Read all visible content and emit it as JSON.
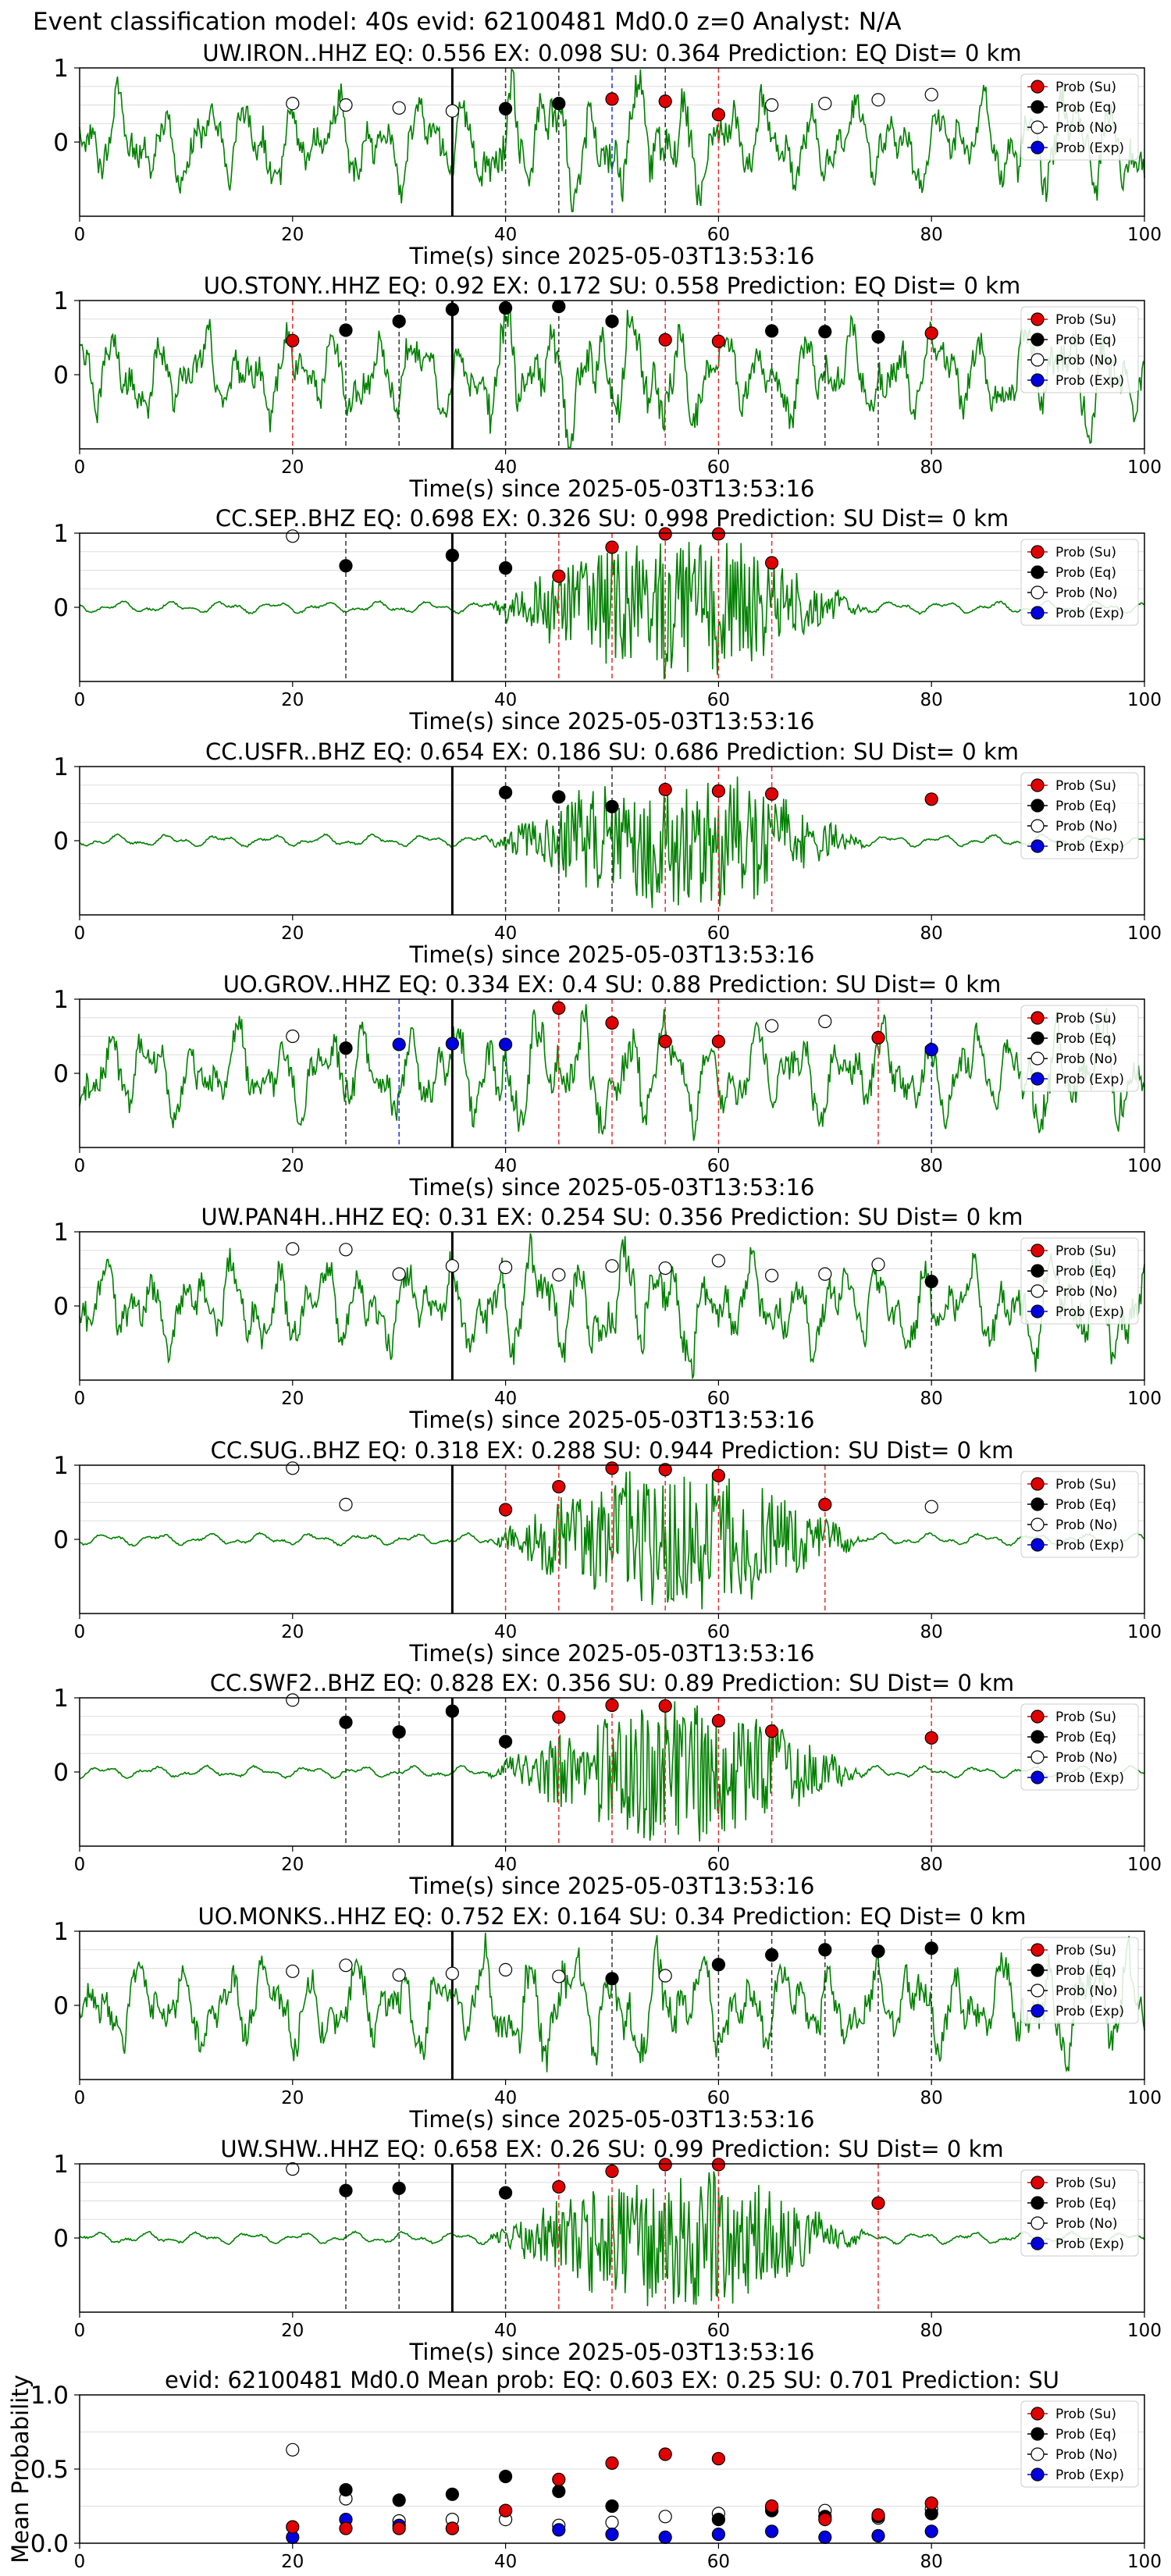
{
  "suptitle": "Event classification model: 40s evid: 62100481 Md0.0 z=0 Analyst: N/A",
  "colors": {
    "waveform": "#008000",
    "su": "#e00000",
    "eq": "#000000",
    "no": "#ffffff",
    "exp": "#0000e0",
    "pick": "#000000",
    "grid": "#dddddd"
  },
  "legend": [
    "Prob (Su)",
    "Prob (Eq)",
    "Prob (No)",
    "Prob (Exp)"
  ],
  "chart_data": [
    {
      "type": "line",
      "title": "UW.IRON..HHZ   EQ: 0.556  EX: 0.098  SU: 0.364   Prediction: EQ    Dist= 0 km",
      "xlabel": "Time(s) since 2025-05-03T13:53:16",
      "xlim": [
        0,
        100
      ],
      "ylim": [
        -1,
        1
      ],
      "xticks": [
        "0",
        "20",
        "40",
        "60",
        "80",
        "100"
      ],
      "yticks": [
        "1",
        "0"
      ],
      "pick_time": 35,
      "signal": "noise",
      "su": [
        [
          50,
          0.58
        ],
        [
          55,
          0.55
        ],
        [
          60,
          0.37
        ]
      ],
      "eq": [
        [
          40,
          0.45
        ],
        [
          45,
          0.52
        ]
      ],
      "no": [
        [
          20,
          0.52
        ],
        [
          25,
          0.5
        ],
        [
          30,
          0.46
        ],
        [
          35,
          0.42
        ],
        [
          65,
          0.5
        ],
        [
          70,
          0.52
        ],
        [
          75,
          0.57
        ],
        [
          80,
          0.64
        ]
      ],
      "exp": [],
      "vlines": [
        {
          "x": 40,
          "c": "k"
        },
        {
          "x": 45,
          "c": "k"
        },
        {
          "x": 50,
          "c": "b"
        },
        {
          "x": 55,
          "c": "k"
        },
        {
          "x": 60,
          "c": "r"
        }
      ]
    },
    {
      "type": "line",
      "title": "UO.STONY..HHZ   EQ: 0.92  EX: 0.172  SU: 0.558   Prediction: EQ    Dist= 0 km",
      "xlabel": "Time(s) since 2025-05-03T13:53:16",
      "xlim": [
        0,
        100
      ],
      "ylim": [
        -1,
        1
      ],
      "xticks": [
        "0",
        "20",
        "40",
        "60",
        "80",
        "100"
      ],
      "yticks": [
        "1",
        "0"
      ],
      "pick_time": 35,
      "signal": "noise",
      "su": [
        [
          20,
          0.46
        ],
        [
          55,
          0.47
        ],
        [
          60,
          0.45
        ],
        [
          80,
          0.56
        ]
      ],
      "eq": [
        [
          25,
          0.6
        ],
        [
          30,
          0.72
        ],
        [
          35,
          0.88
        ],
        [
          40,
          0.9
        ],
        [
          45,
          0.92
        ],
        [
          50,
          0.72
        ],
        [
          65,
          0.59
        ],
        [
          70,
          0.58
        ],
        [
          75,
          0.51
        ]
      ],
      "no": [],
      "exp": [],
      "vlines": [
        {
          "x": 20,
          "c": "r"
        },
        {
          "x": 25,
          "c": "k"
        },
        {
          "x": 30,
          "c": "k"
        },
        {
          "x": 40,
          "c": "k"
        },
        {
          "x": 45,
          "c": "k"
        },
        {
          "x": 50,
          "c": "k"
        },
        {
          "x": 55,
          "c": "r"
        },
        {
          "x": 60,
          "c": "r"
        },
        {
          "x": 65,
          "c": "k"
        },
        {
          "x": 70,
          "c": "k"
        },
        {
          "x": 75,
          "c": "k"
        },
        {
          "x": 80,
          "c": "r"
        }
      ]
    },
    {
      "type": "line",
      "title": "CC.SEP..BHZ   EQ: 0.698  EX: 0.326  SU: 0.998   Prediction: SU    Dist= 0 km",
      "xlabel": "Time(s) since 2025-05-03T13:53:16",
      "xlim": [
        0,
        100
      ],
      "ylim": [
        -1,
        1
      ],
      "xticks": [
        "0",
        "20",
        "40",
        "60",
        "80",
        "100"
      ],
      "yticks": [
        "1",
        "0"
      ],
      "pick_time": 35,
      "signal": "burst",
      "su": [
        [
          45,
          0.42
        ],
        [
          50,
          0.81
        ],
        [
          55,
          0.99
        ],
        [
          60,
          0.99
        ],
        [
          65,
          0.6
        ]
      ],
      "eq": [
        [
          25,
          0.56
        ],
        [
          35,
          0.7
        ],
        [
          40,
          0.53
        ]
      ],
      "no": [
        [
          20,
          0.96
        ]
      ],
      "exp": [],
      "vlines": [
        {
          "x": 25,
          "c": "k"
        },
        {
          "x": 40,
          "c": "k"
        },
        {
          "x": 45,
          "c": "r"
        },
        {
          "x": 50,
          "c": "r"
        },
        {
          "x": 55,
          "c": "r"
        },
        {
          "x": 60,
          "c": "r"
        },
        {
          "x": 65,
          "c": "r"
        }
      ]
    },
    {
      "type": "line",
      "title": "CC.USFR..BHZ   EQ: 0.654  EX: 0.186  SU: 0.686   Prediction: SU    Dist= 0 km",
      "xlabel": "Time(s) since 2025-05-03T13:53:16",
      "xlim": [
        0,
        100
      ],
      "ylim": [
        -1,
        1
      ],
      "xticks": [
        "0",
        "20",
        "40",
        "60",
        "80",
        "100"
      ],
      "yticks": [
        "1",
        "0"
      ],
      "pick_time": 35,
      "signal": "burst",
      "su": [
        [
          55,
          0.69
        ],
        [
          60,
          0.67
        ],
        [
          65,
          0.63
        ],
        [
          80,
          0.56
        ]
      ],
      "eq": [
        [
          40,
          0.65
        ],
        [
          45,
          0.59
        ],
        [
          50,
          0.46
        ]
      ],
      "no": [],
      "exp": [],
      "vlines": [
        {
          "x": 40,
          "c": "k"
        },
        {
          "x": 45,
          "c": "k"
        },
        {
          "x": 50,
          "c": "k"
        },
        {
          "x": 55,
          "c": "r"
        },
        {
          "x": 60,
          "c": "r"
        },
        {
          "x": 65,
          "c": "r"
        }
      ]
    },
    {
      "type": "line",
      "title": "UO.GROV..HHZ   EQ: 0.334  EX: 0.4  SU: 0.88   Prediction: SU    Dist= 0 km",
      "xlabel": "Time(s) since 2025-05-03T13:53:16",
      "xlim": [
        0,
        100
      ],
      "ylim": [
        -1,
        1
      ],
      "xticks": [
        "0",
        "20",
        "40",
        "60",
        "80",
        "100"
      ],
      "yticks": [
        "1",
        "0"
      ],
      "pick_time": 35,
      "signal": "noise",
      "su": [
        [
          45,
          0.88
        ],
        [
          50,
          0.68
        ],
        [
          55,
          0.43
        ],
        [
          60,
          0.43
        ],
        [
          75,
          0.48
        ]
      ],
      "eq": [
        [
          25,
          0.34
        ]
      ],
      "no": [
        [
          20,
          0.5
        ],
        [
          65,
          0.64
        ],
        [
          70,
          0.7
        ]
      ],
      "exp": [
        [
          30,
          0.39
        ],
        [
          35,
          0.4
        ],
        [
          40,
          0.39
        ],
        [
          80,
          0.32
        ]
      ],
      "vlines": [
        {
          "x": 25,
          "c": "k"
        },
        {
          "x": 30,
          "c": "b"
        },
        {
          "x": 40,
          "c": "b"
        },
        {
          "x": 45,
          "c": "r"
        },
        {
          "x": 50,
          "c": "r"
        },
        {
          "x": 55,
          "c": "r"
        },
        {
          "x": 60,
          "c": "r"
        },
        {
          "x": 75,
          "c": "r"
        },
        {
          "x": 80,
          "c": "b"
        }
      ]
    },
    {
      "type": "line",
      "title": "UW.PAN4H..HHZ   EQ: 0.31  EX: 0.254  SU: 0.356   Prediction: SU    Dist= 0 km",
      "xlabel": "Time(s) since 2025-05-03T13:53:16",
      "xlim": [
        0,
        100
      ],
      "ylim": [
        -1,
        1
      ],
      "xticks": [
        "0",
        "20",
        "40",
        "60",
        "80",
        "100"
      ],
      "yticks": [
        "1",
        "0"
      ],
      "pick_time": 35,
      "signal": "noise",
      "su": [],
      "eq": [
        [
          80,
          0.33
        ]
      ],
      "no": [
        [
          20,
          0.77
        ],
        [
          25,
          0.76
        ],
        [
          30,
          0.43
        ],
        [
          35,
          0.54
        ],
        [
          40,
          0.52
        ],
        [
          45,
          0.42
        ],
        [
          50,
          0.54
        ],
        [
          55,
          0.51
        ],
        [
          60,
          0.61
        ],
        [
          65,
          0.41
        ],
        [
          70,
          0.43
        ],
        [
          75,
          0.56
        ]
      ],
      "exp": [],
      "vlines": [
        {
          "x": 80,
          "c": "k"
        }
      ]
    },
    {
      "type": "line",
      "title": "CC.SUG..BHZ   EQ: 0.318  EX: 0.288  SU: 0.944   Prediction: SU    Dist= 0 km",
      "xlabel": "Time(s) since 2025-05-03T13:53:16",
      "xlim": [
        0,
        100
      ],
      "ylim": [
        -1,
        1
      ],
      "xticks": [
        "0",
        "20",
        "40",
        "60",
        "80",
        "100"
      ],
      "yticks": [
        "1",
        "0"
      ],
      "pick_time": 35,
      "signal": "burst",
      "su": [
        [
          40,
          0.4
        ],
        [
          45,
          0.71
        ],
        [
          50,
          0.96
        ],
        [
          55,
          0.94
        ],
        [
          60,
          0.86
        ],
        [
          70,
          0.47
        ]
      ],
      "eq": [],
      "no": [
        [
          20,
          0.96
        ],
        [
          25,
          0.47
        ],
        [
          80,
          0.44
        ]
      ],
      "exp": [],
      "vlines": [
        {
          "x": 40,
          "c": "r"
        },
        {
          "x": 45,
          "c": "r"
        },
        {
          "x": 50,
          "c": "r"
        },
        {
          "x": 55,
          "c": "r"
        },
        {
          "x": 60,
          "c": "r"
        },
        {
          "x": 70,
          "c": "r"
        }
      ]
    },
    {
      "type": "line",
      "title": "CC.SWF2..BHZ   EQ: 0.828  EX: 0.356  SU: 0.89   Prediction: SU    Dist= 0 km",
      "xlabel": "Time(s) since 2025-05-03T13:53:16",
      "xlim": [
        0,
        100
      ],
      "ylim": [
        -1,
        1
      ],
      "xticks": [
        "0",
        "20",
        "40",
        "60",
        "80",
        "100"
      ],
      "yticks": [
        "1",
        "0"
      ],
      "pick_time": 35,
      "signal": "burst",
      "su": [
        [
          45,
          0.74
        ],
        [
          50,
          0.9
        ],
        [
          55,
          0.89
        ],
        [
          60,
          0.69
        ],
        [
          65,
          0.55
        ],
        [
          80,
          0.46
        ]
      ],
      "eq": [
        [
          25,
          0.67
        ],
        [
          30,
          0.54
        ],
        [
          35,
          0.82
        ],
        [
          40,
          0.41
        ]
      ],
      "no": [
        [
          20,
          0.97
        ]
      ],
      "exp": [],
      "vlines": [
        {
          "x": 25,
          "c": "k"
        },
        {
          "x": 30,
          "c": "k"
        },
        {
          "x": 40,
          "c": "k"
        },
        {
          "x": 45,
          "c": "r"
        },
        {
          "x": 50,
          "c": "r"
        },
        {
          "x": 55,
          "c": "r"
        },
        {
          "x": 60,
          "c": "r"
        },
        {
          "x": 65,
          "c": "r"
        },
        {
          "x": 80,
          "c": "r"
        }
      ]
    },
    {
      "type": "line",
      "title": "UO.MONKS..HHZ   EQ: 0.752  EX: 0.164  SU: 0.34   Prediction: EQ    Dist= 0 km",
      "xlabel": "Time(s) since 2025-05-03T13:53:16",
      "xlim": [
        0,
        100
      ],
      "ylim": [
        -1,
        1
      ],
      "xticks": [
        "0",
        "20",
        "40",
        "60",
        "80",
        "100"
      ],
      "yticks": [
        "1",
        "0"
      ],
      "pick_time": 35,
      "signal": "noise",
      "su": [],
      "eq": [
        [
          50,
          0.36
        ],
        [
          60,
          0.55
        ],
        [
          65,
          0.68
        ],
        [
          70,
          0.75
        ],
        [
          75,
          0.73
        ],
        [
          80,
          0.77
        ]
      ],
      "no": [
        [
          20,
          0.46
        ],
        [
          25,
          0.54
        ],
        [
          30,
          0.41
        ],
        [
          35,
          0.43
        ],
        [
          40,
          0.48
        ],
        [
          45,
          0.39
        ],
        [
          55,
          0.4
        ]
      ],
      "exp": [],
      "vlines": [
        {
          "x": 50,
          "c": "k"
        },
        {
          "x": 60,
          "c": "k"
        },
        {
          "x": 65,
          "c": "k"
        },
        {
          "x": 70,
          "c": "k"
        },
        {
          "x": 75,
          "c": "k"
        },
        {
          "x": 80,
          "c": "k"
        }
      ]
    },
    {
      "type": "line",
      "title": "UW.SHW..HHZ   EQ: 0.658  EX: 0.26  SU: 0.99   Prediction: SU    Dist= 0 km",
      "xlabel": "Time(s) since 2025-05-03T13:53:16",
      "xlim": [
        0,
        100
      ],
      "ylim": [
        -1,
        1
      ],
      "xticks": [
        "0",
        "20",
        "40",
        "60",
        "80",
        "100"
      ],
      "yticks": [
        "1",
        "0"
      ],
      "pick_time": 35,
      "signal": "burst",
      "su": [
        [
          45,
          0.69
        ],
        [
          50,
          0.9
        ],
        [
          55,
          0.99
        ],
        [
          60,
          0.99
        ],
        [
          75,
          0.47
        ]
      ],
      "eq": [
        [
          25,
          0.64
        ],
        [
          30,
          0.67
        ],
        [
          40,
          0.61
        ]
      ],
      "no": [
        [
          20,
          0.93
        ]
      ],
      "exp": [],
      "vlines": [
        {
          "x": 25,
          "c": "k"
        },
        {
          "x": 30,
          "c": "k"
        },
        {
          "x": 40,
          "c": "k"
        },
        {
          "x": 45,
          "c": "r"
        },
        {
          "x": 50,
          "c": "r"
        },
        {
          "x": 55,
          "c": "r"
        },
        {
          "x": 60,
          "c": "r"
        },
        {
          "x": 75,
          "c": "r"
        }
      ]
    },
    {
      "type": "scatter",
      "title": "evid: 62100481  Md0.0   Mean prob:   EQ: 0.603  EX: 0.25  SU: 0.701   Prediction: SU",
      "xlabel": "",
      "ylabel": "Mean Probability",
      "xlim": [
        0,
        100
      ],
      "ylim": [
        0,
        1
      ],
      "xticks": [
        "0",
        "20",
        "40",
        "60",
        "80",
        "100"
      ],
      "yticks": [
        "1.0",
        "0.5",
        "0.0"
      ],
      "su": [
        [
          20,
          0.11
        ],
        [
          25,
          0.1
        ],
        [
          30,
          0.1
        ],
        [
          35,
          0.1
        ],
        [
          40,
          0.22
        ],
        [
          45,
          0.43
        ],
        [
          50,
          0.54
        ],
        [
          55,
          0.6
        ],
        [
          60,
          0.57
        ],
        [
          65,
          0.25
        ],
        [
          70,
          0.16
        ],
        [
          75,
          0.19
        ],
        [
          80,
          0.27
        ]
      ],
      "eq": [
        [
          25,
          0.36
        ],
        [
          30,
          0.29
        ],
        [
          35,
          0.33
        ],
        [
          40,
          0.45
        ],
        [
          45,
          0.35
        ],
        [
          50,
          0.25
        ],
        [
          60,
          0.16
        ],
        [
          65,
          0.22
        ],
        [
          70,
          0.18
        ],
        [
          75,
          0.18
        ],
        [
          80,
          0.2
        ]
      ],
      "no": [
        [
          20,
          0.63
        ],
        [
          25,
          0.3
        ],
        [
          30,
          0.15
        ],
        [
          35,
          0.16
        ],
        [
          40,
          0.16
        ],
        [
          45,
          0.12
        ],
        [
          50,
          0.14
        ],
        [
          55,
          0.18
        ],
        [
          60,
          0.2
        ],
        [
          65,
          0.24
        ],
        [
          70,
          0.22
        ],
        [
          75,
          0.17
        ],
        [
          80,
          0.23
        ]
      ],
      "exp": [
        [
          20,
          0.04
        ],
        [
          25,
          0.16
        ],
        [
          30,
          0.12
        ],
        [
          35,
          0.1
        ],
        [
          40,
          0.22
        ],
        [
          45,
          0.09
        ],
        [
          50,
          0.06
        ],
        [
          55,
          0.04
        ],
        [
          60,
          0.06
        ],
        [
          65,
          0.08
        ],
        [
          70,
          0.04
        ],
        [
          75,
          0.05
        ],
        [
          80,
          0.08
        ]
      ]
    }
  ]
}
